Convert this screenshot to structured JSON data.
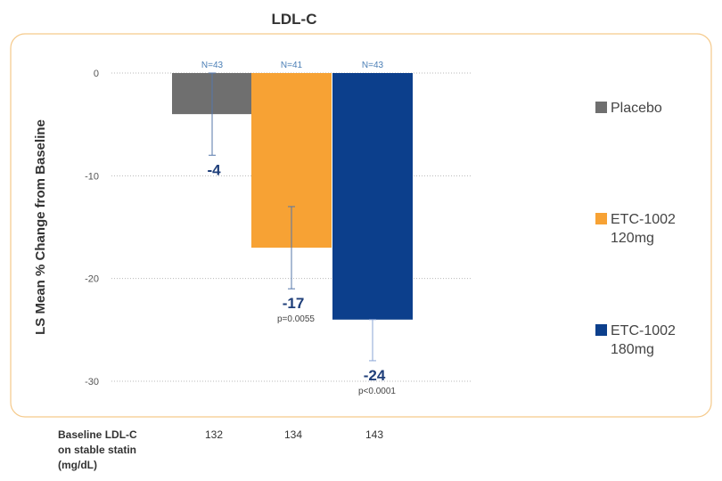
{
  "chart_data": {
    "type": "bar",
    "title": "LDL-C",
    "ylabel": "LS Mean % Change from Baseline",
    "ylim": [
      -30,
      0
    ],
    "yticks": [
      0,
      -10,
      -20,
      -30
    ],
    "grid": true,
    "legend_position": "right",
    "categories": [
      "Placebo",
      "ETC-1002 120mg",
      "ETC-1002 180mg"
    ],
    "values": [
      -4,
      -17,
      -24
    ],
    "error_bars": [
      [
        -8,
        0
      ],
      [
        -21,
        -13
      ],
      [
        -28,
        -24
      ]
    ],
    "n_labels": [
      "N=43",
      "N=41",
      "N=43"
    ],
    "value_labels": [
      "-4",
      "-17",
      "-24"
    ],
    "p_values": [
      "",
      "p=0.0055",
      "p<0.0001"
    ],
    "colors": [
      "#6f6f6f",
      "#f7a234",
      "#0c3f8c"
    ],
    "legend": [
      {
        "lines": [
          "Placebo"
        ],
        "color": "#6f6f6f"
      },
      {
        "lines": [
          "ETC-1002",
          "120mg"
        ],
        "color": "#f7a234"
      },
      {
        "lines": [
          "ETC-1002",
          "180mg"
        ],
        "color": "#0c3f8c"
      }
    ],
    "baseline": {
      "label_lines": [
        "Baseline LDL-C",
        "on stable statin",
        "(mg/dL)"
      ],
      "values": [
        "132",
        "134",
        "143"
      ]
    }
  },
  "frame_color": "#f5c98a"
}
